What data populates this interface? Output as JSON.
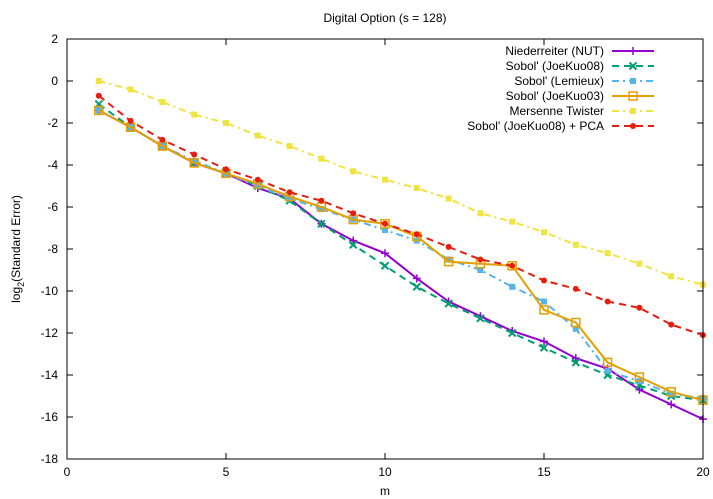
{
  "chart_data": {
    "type": "line",
    "title": "Digital Option (s = 128)",
    "xlabel": "m",
    "ylabel_main": "log",
    "ylabel_sub": "2",
    "ylabel_rest": "(Standard Error)",
    "xlim": [
      0,
      20
    ],
    "ylim": [
      -18,
      2
    ],
    "xticks": [
      0,
      5,
      10,
      15,
      20
    ],
    "yticks": [
      2,
      0,
      -2,
      -4,
      -6,
      -8,
      -10,
      -12,
      -14,
      -16,
      -18
    ],
    "grid": false,
    "legend_position": "top-right",
    "series": [
      {
        "name": "Niederreiter (NUT)",
        "color": "#9400d3",
        "dash": "solid",
        "marker": "plus",
        "x": [
          1,
          2,
          3,
          4,
          5,
          6,
          7,
          8,
          9,
          10,
          11,
          12,
          13,
          14,
          15,
          16,
          17,
          18,
          19,
          20
        ],
        "y": [
          -1.4,
          -2.2,
          -3.1,
          -3.9,
          -4.4,
          -5.1,
          -5.6,
          -6.8,
          -7.6,
          -8.2,
          -9.4,
          -10.5,
          -11.2,
          -11.9,
          -12.4,
          -13.2,
          -13.7,
          -14.7,
          -15.4,
          -16.1
        ]
      },
      {
        "name": "Sobol' (JoeKuo08)",
        "color": "#009e73",
        "dash": "dashed",
        "marker": "x",
        "x": [
          1,
          2,
          3,
          4,
          5,
          6,
          7,
          8,
          9,
          10,
          11,
          12,
          13,
          14,
          15,
          16,
          17,
          18,
          19,
          20
        ],
        "y": [
          -1.1,
          -2.2,
          -3.1,
          -3.9,
          -4.4,
          -5.0,
          -5.7,
          -6.8,
          -7.8,
          -8.8,
          -9.8,
          -10.6,
          -11.3,
          -12.0,
          -12.7,
          -13.4,
          -14.0,
          -14.5,
          -15.0,
          -15.2
        ]
      },
      {
        "name": "Sobol' (Lemieux)",
        "color": "#56b4e9",
        "dash": "dashdot",
        "marker": "filled-square",
        "x": [
          1,
          2,
          3,
          4,
          5,
          6,
          7,
          8,
          9,
          10,
          11,
          12,
          13,
          14,
          15,
          16,
          17,
          18,
          19,
          20
        ],
        "y": [
          -1.4,
          -2.2,
          -3.1,
          -3.8,
          -4.4,
          -5.0,
          -5.6,
          -6.1,
          -6.6,
          -7.1,
          -7.6,
          -8.5,
          -9.0,
          -9.8,
          -10.5,
          -11.8,
          -13.8,
          -14.3,
          -14.9,
          -15.1
        ]
      },
      {
        "name": "Sobol' (JoeKuo03)",
        "color": "#e69f00",
        "dash": "solid",
        "marker": "open-square",
        "x": [
          1,
          2,
          3,
          4,
          5,
          6,
          7,
          8,
          9,
          10,
          11,
          12,
          13,
          14,
          15,
          16,
          17,
          18,
          19,
          20
        ],
        "y": [
          -1.4,
          -2.2,
          -3.1,
          -3.9,
          -4.4,
          -4.9,
          -5.5,
          -6.0,
          -6.6,
          -6.8,
          -7.4,
          -8.6,
          -8.7,
          -8.8,
          -10.9,
          -11.5,
          -13.4,
          -14.1,
          -14.8,
          -15.2
        ]
      },
      {
        "name": "Mersenne Twister",
        "color": "#f0e442",
        "dash": "dashdot",
        "marker": "filled-square",
        "x": [
          1,
          2,
          3,
          4,
          5,
          6,
          7,
          8,
          9,
          10,
          11,
          12,
          13,
          14,
          15,
          16,
          17,
          18,
          19,
          20
        ],
        "y": [
          0.0,
          -0.4,
          -1.0,
          -1.6,
          -2.0,
          -2.6,
          -3.1,
          -3.7,
          -4.3,
          -4.7,
          -5.1,
          -5.6,
          -6.3,
          -6.7,
          -7.2,
          -7.8,
          -8.2,
          -8.7,
          -9.3,
          -9.7
        ]
      },
      {
        "name": "Sobol' (JoeKuo08) + PCA",
        "color": "#e51e10",
        "dash": "dashed",
        "marker": "filled-circle",
        "x": [
          1,
          2,
          3,
          4,
          5,
          6,
          7,
          8,
          9,
          10,
          11,
          12,
          13,
          14,
          15,
          16,
          17,
          18,
          19,
          20
        ],
        "y": [
          -0.7,
          -1.9,
          -2.8,
          -3.5,
          -4.2,
          -4.7,
          -5.3,
          -5.7,
          -6.3,
          -6.8,
          -7.3,
          -7.9,
          -8.5,
          -8.8,
          -9.5,
          -9.9,
          -10.5,
          -10.8,
          -11.6,
          -12.1
        ]
      }
    ]
  }
}
